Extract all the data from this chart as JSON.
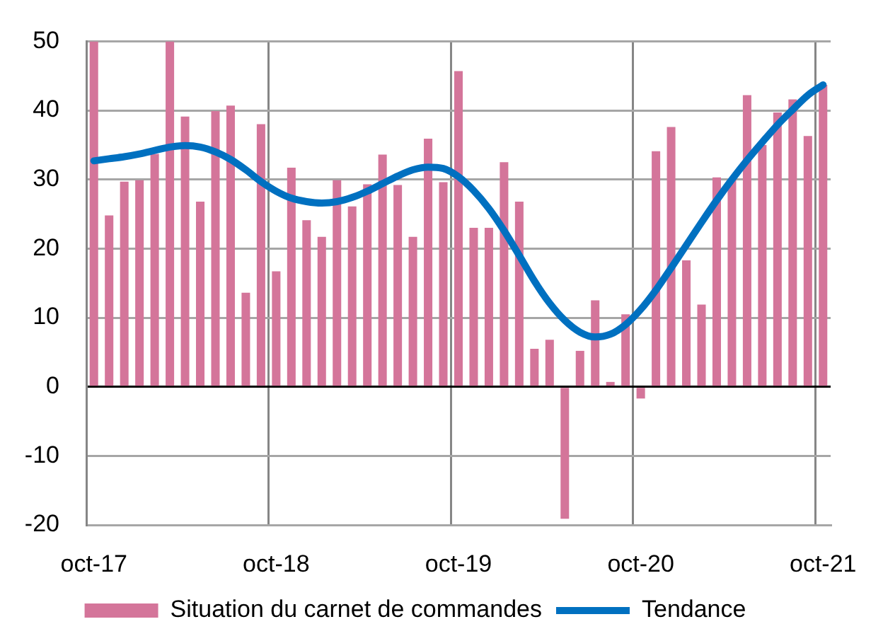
{
  "chart_data": {
    "type": "bar",
    "categories": [
      "oct-17",
      null,
      null,
      null,
      null,
      null,
      null,
      null,
      null,
      null,
      null,
      null,
      "oct-18",
      null,
      null,
      null,
      null,
      null,
      null,
      null,
      null,
      null,
      null,
      null,
      "oct-19",
      null,
      null,
      null,
      null,
      null,
      null,
      null,
      null,
      null,
      null,
      null,
      "oct-20",
      null,
      null,
      null,
      null,
      null,
      null,
      null,
      null,
      null,
      null,
      null,
      "oct-21"
    ],
    "series": [
      {
        "name": "Situation du carnet de commandes",
        "color": "#d4759a",
        "values": [
          50,
          24.8,
          29.7,
          29.9,
          33.7,
          50,
          39.1,
          26.8,
          39.9,
          40.7,
          13.6,
          38.0,
          16.7,
          31.7,
          24.1,
          21.7,
          29.9,
          26.1,
          29.3,
          33.6,
          29.2,
          21.7,
          35.9,
          29.6,
          45.7,
          23.0,
          23.0,
          32.5,
          26.8,
          5.5,
          6.8,
          -19.1,
          5.2,
          12.5,
          0.7,
          10.5,
          -1.7,
          34.1,
          37.6,
          18.3,
          11.9,
          30.3,
          30.0,
          42.2,
          35.0,
          39.7,
          41.6,
          36.3,
          43.7
        ]
      },
      {
        "name": "Tendance",
        "type": "line",
        "color": "#0070c0",
        "values": [
          32.7,
          33.0,
          33.3,
          33.7,
          34.2,
          34.7,
          34.9,
          34.7,
          34.0,
          32.9,
          31.4,
          29.7,
          28.3,
          27.3,
          26.8,
          26.6,
          26.8,
          27.4,
          28.3,
          29.4,
          30.5,
          31.4,
          31.8,
          31.6,
          30.4,
          28.4,
          25.8,
          22.6,
          19.0,
          15.3,
          12.1,
          9.6,
          7.9,
          7.2,
          7.6,
          9.0,
          11.2,
          14.0,
          17.2,
          20.5,
          23.8,
          27.0,
          30.0,
          32.8,
          35.4,
          37.9,
          40.1,
          42.2,
          43.7
        ]
      }
    ],
    "ylim": [
      -20,
      50
    ],
    "yticks": [
      -20,
      -10,
      0,
      10,
      20,
      30,
      40,
      50
    ],
    "grid": true,
    "legend": "bottom"
  }
}
